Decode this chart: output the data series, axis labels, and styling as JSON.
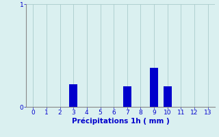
{
  "categories": [
    0,
    1,
    2,
    3,
    4,
    5,
    6,
    7,
    8,
    9,
    10,
    11,
    12,
    13
  ],
  "values": [
    0,
    0,
    0,
    0.22,
    0,
    0,
    0,
    0.2,
    0,
    0.38,
    0.2,
    0,
    0,
    0
  ],
  "bar_color": "#0000cc",
  "bg_color": "#daf0f0",
  "grid_color": "#aacccc",
  "xlabel": "Précipitations 1h ( mm )",
  "xlabel_color": "#0000cc",
  "tick_color": "#0000cc",
  "axis_color": "#888888",
  "xlim": [
    -0.5,
    13.5
  ],
  "ylim": [
    0,
    1.0
  ],
  "yticks": [
    0,
    1
  ],
  "xticks": [
    0,
    1,
    2,
    3,
    4,
    5,
    6,
    7,
    8,
    9,
    10,
    11,
    12,
    13
  ],
  "xlabel_fontsize": 7.5,
  "tick_fontsize": 6.5,
  "bar_width": 0.6
}
